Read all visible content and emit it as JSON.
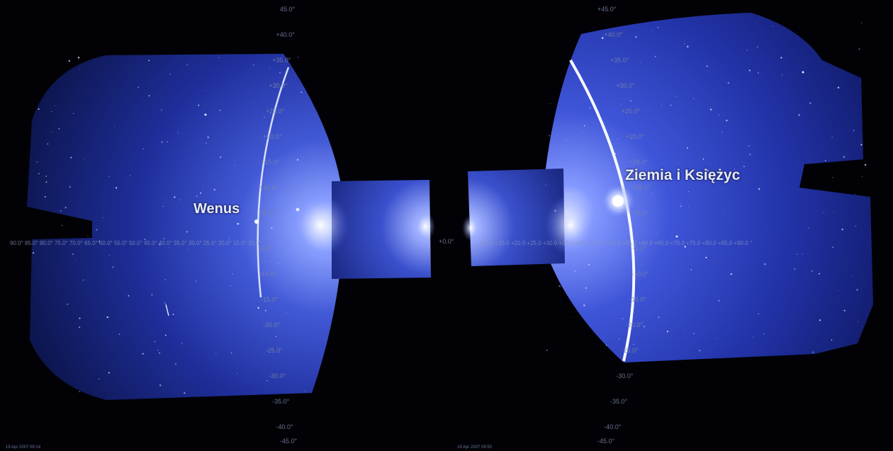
{
  "labels": {
    "venus": "Wenus",
    "earth_moon": "Ziemia i Księżyc"
  },
  "center_tick": "+0.0°",
  "ticks_left_column": [
    "45.0°",
    "+40.0°",
    "+35.0°",
    "+30.0°",
    "+25.0°",
    "+20.0°",
    "+15.0°",
    "+10.0°",
    "+5.0°",
    "-5.0°",
    "-10.0°",
    "-15.0°",
    "-20.0°",
    "-25.0°",
    "-30.0°",
    "-35.0°",
    "-40.0°",
    "-45.0°"
  ],
  "ticks_right_column": [
    "+45.0°",
    "+40.0°",
    "+35.0°",
    "+30.0°",
    "+25.0°",
    "+20.0°",
    "+15.0°",
    "+10.0°",
    "+5.0°",
    "-5.0°",
    "-10.0°",
    "-15.0°",
    "-20.0°",
    "-25.0°",
    "-30.0°",
    "-35.0°",
    "-40.0°",
    "-45.0°"
  ],
  "axis_left": "90.0° 85.0° 80.0° 75.0° 70.0° 65.0° 60.0° 55.0° 50.0° 45.0° 40.0° 35.0° 30.0° 25.0° 20.0° 15.0° 10.0°",
  "axis_right": "+10.0 +15.0 +20.0 +25.0 +30.0 +35.0 +40.0 +45.0 +50.0 +55.0 +60.0 +65.0 +70.0 +75.0 +80.0 +85.0 +90.0",
  "timestamps": {
    "left": "19 Apr 2007 09:14",
    "middle": "19 Apr 2007 09:50"
  },
  "colors": {
    "background": "#020206",
    "glow": "#3f55d8",
    "halo": "#c8d4ff",
    "arc": "#f2f4ff"
  }
}
